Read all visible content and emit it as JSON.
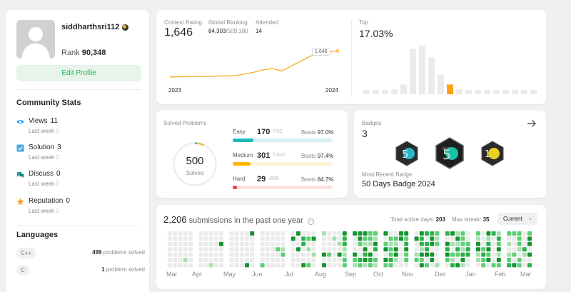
{
  "profile": {
    "username": "siddharthsri112",
    "rank_label": "Rank",
    "rank_value": "90,348",
    "edit_label": "Edit Profile"
  },
  "community": {
    "title": "Community Stats",
    "items": [
      {
        "label": "Views",
        "value": "11",
        "sub_label": "Last week",
        "sub_value": "0",
        "icon": "eye-icon",
        "color": "#1890ff"
      },
      {
        "label": "Solution",
        "value": "3",
        "sub_label": "Last week",
        "sub_value": "0",
        "icon": "check-square-icon",
        "color": "#4aa8e0"
      },
      {
        "label": "Discuss",
        "value": "0",
        "sub_label": "Last week",
        "sub_value": "0",
        "icon": "chat-icon",
        "color": "#16a394"
      },
      {
        "label": "Reputation",
        "value": "0",
        "sub_label": "Last week",
        "sub_value": "0",
        "icon": "star-icon",
        "color": "#ffa116"
      }
    ]
  },
  "languages": {
    "title": "Languages",
    "items": [
      {
        "name": "C++",
        "count": "499",
        "suffix": "problems solved"
      },
      {
        "name": "C",
        "count": "1",
        "suffix": "problem solved"
      }
    ]
  },
  "contest": {
    "rating_label": "Contest Rating",
    "rating": "1,646",
    "global_label": "Global Ranking",
    "global_rank": "84,303",
    "global_total": "/509,180",
    "attended_label": "Attended",
    "attended": "14",
    "tooltip": "1,646",
    "years": [
      "2023",
      "2024"
    ],
    "top_label": "Top",
    "top_value": "17.03%",
    "rating_series": [
      1430,
      1432,
      1434,
      1435,
      1436,
      1438,
      1440,
      1441,
      1455,
      1470,
      1490,
      1500,
      1480,
      1520,
      1560,
      1600,
      1630,
      1640,
      1646
    ],
    "histogram": [
      1,
      1,
      2,
      3,
      6,
      28,
      30,
      23,
      12,
      6,
      3,
      2,
      1,
      1,
      1,
      1,
      1,
      1,
      1
    ],
    "histogram_highlight_index": 9,
    "accent": "#ffa116"
  },
  "solved": {
    "title": "Solved Problems",
    "total": "500",
    "total_label": "Solved",
    "beats_label": "Beats",
    "difficulties": [
      {
        "name": "Easy",
        "count": "170",
        "total": "/782",
        "beats": "97.0%",
        "fraction": 0.217,
        "color": "#1cbaba",
        "track": "#d5f1f1"
      },
      {
        "name": "Medium",
        "count": "301",
        "total": "/1620",
        "beats": "97.4%",
        "fraction": 0.186,
        "color": "#ffb700",
        "track": "#fff3d6"
      },
      {
        "name": "Hard",
        "count": "29",
        "total": "/685",
        "beats": "84.7%",
        "fraction": 0.042,
        "color": "#f63737",
        "track": "#fde0e0"
      }
    ]
  },
  "badges": {
    "title": "Badges",
    "count": "3",
    "recent_label": "Most Recent Badge",
    "recent_name": "50 Days Badge 2024"
  },
  "submissions": {
    "count": "2,206",
    "text": "submissions in the past one year",
    "active_label": "Total active days:",
    "active_value": "203",
    "streak_label": "Max streak:",
    "streak_value": "35",
    "select_value": "Current",
    "months": [
      "Mar",
      "Apr",
      "May",
      "Jun",
      "Jul",
      "Aug",
      "Sep",
      "Oct",
      "Nov",
      "Dec",
      "Jan",
      "Feb",
      "Mar"
    ]
  }
}
